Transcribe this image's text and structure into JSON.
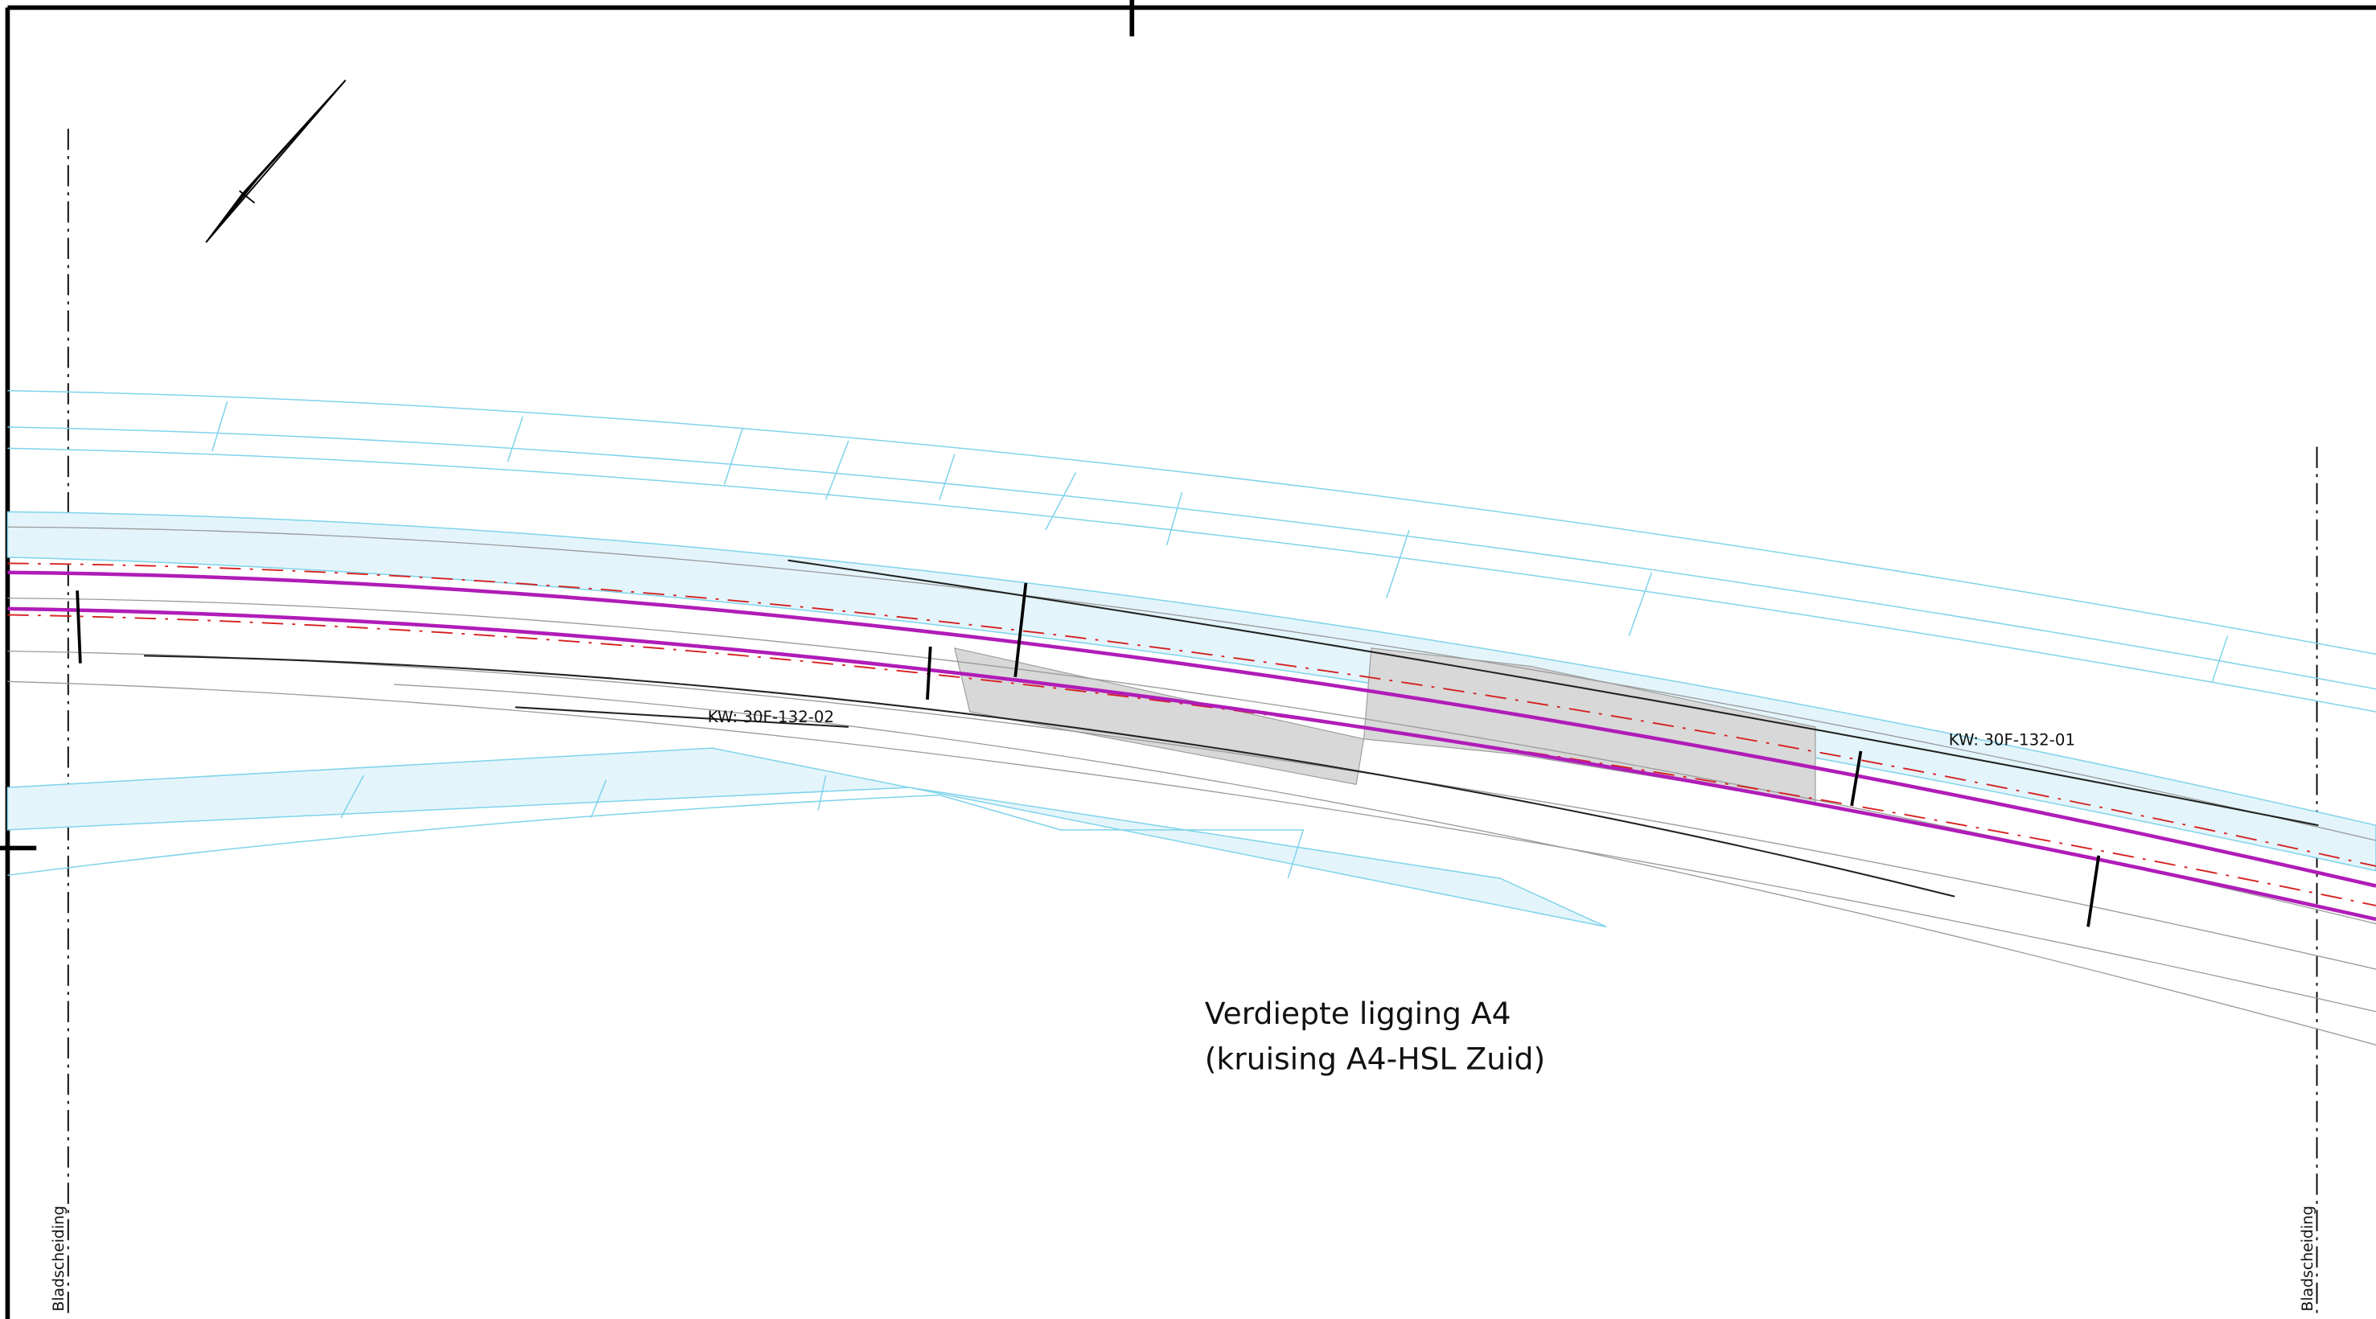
{
  "title": {
    "line1": "Verdiepte ligging A4",
    "line2": "(kruising A4-HSL Zuid)"
  },
  "structures": [
    "KW: 30F-132-02",
    "KW: 30F-132-01"
  ],
  "sheet_boundaries": [
    "Bladscheiding",
    "Bladscheiding"
  ]
}
